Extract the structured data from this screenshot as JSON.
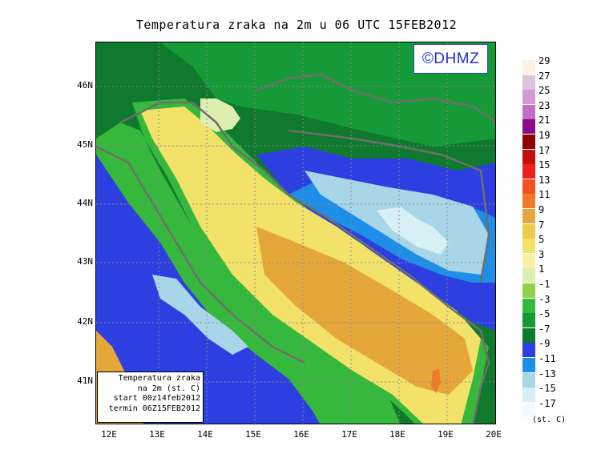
{
  "title": "Temperatura zraka na 2m u 06 UTC 15FEB2012",
  "copyright": "©DHMZ",
  "info_box": {
    "line1": "Temperatura zraka",
    "line2": "na 2m (st. C)",
    "line3": "start 00z14feb2012",
    "line4": "termin 06Z15FEB2012"
  },
  "y_ticks": [
    "46N",
    "45N",
    "44N",
    "43N",
    "42N",
    "41N"
  ],
  "x_ticks": [
    "12E",
    "13E",
    "14E",
    "15E",
    "16E",
    "17E",
    "18E",
    "19E",
    "20E"
  ],
  "legend": {
    "labels": [
      "29",
      "27",
      "25",
      "23",
      "21",
      "19",
      "17",
      "15",
      "13",
      "11",
      "9",
      "7",
      "5",
      "3",
      "1",
      "-1",
      "-3",
      "-5",
      "-7",
      "-9",
      "-11",
      "-13",
      "-15",
      "-17"
    ],
    "colors": [
      "#fdf1e6",
      "#dcc4dc",
      "#d29ad4",
      "#c46ec8",
      "#8b0a8b",
      "#8f0000",
      "#c41010",
      "#ee2020",
      "#f55020",
      "#f07a2a",
      "#e6a73a",
      "#e9cc49",
      "#f2e26a",
      "#f8f0a4",
      "#dcefb0",
      "#8fd24d",
      "#36b83c",
      "#159a37",
      "#0f7a2d",
      "#2d3fe0",
      "#1e8ee6",
      "#a6d6e8",
      "#d6f0f6",
      "#f3fbff"
    ],
    "unit": "(st. C)"
  },
  "colors": {
    "sea_warm": "#e6a73a",
    "sea_mild": "#f2e26a",
    "coast": "#36b83c",
    "land_cold": "#2d3fe0",
    "land_very_cold": "#a6d6e8",
    "border": "#6e6e6e",
    "copyright_blue": "#1e32c8"
  }
}
